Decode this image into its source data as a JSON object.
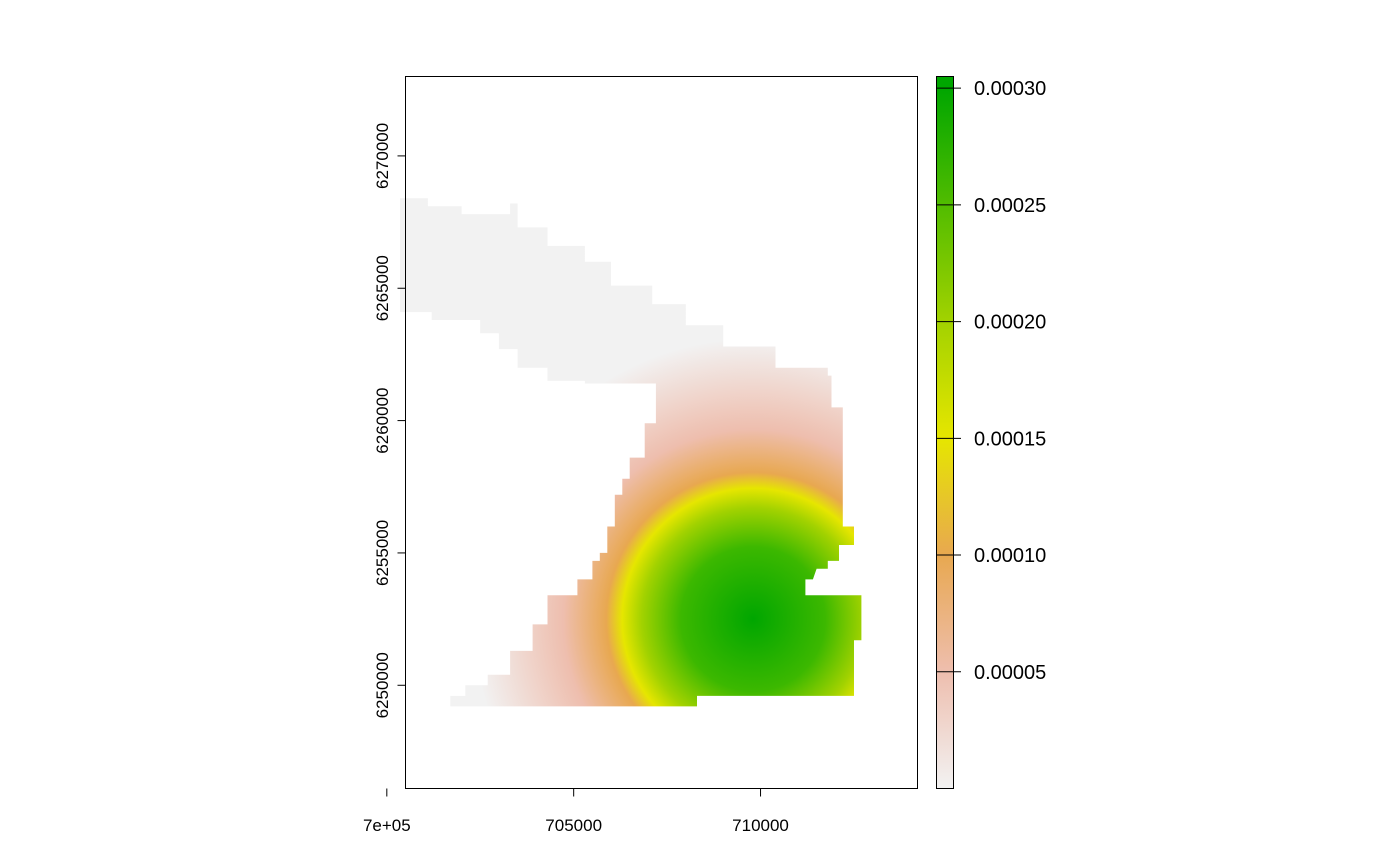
{
  "chart_data": {
    "type": "heatmap",
    "title": "",
    "xlabel": "",
    "ylabel": "",
    "xlim": [
      700500,
      714200
    ],
    "ylim": [
      6246100,
      6273000
    ],
    "x_ticks": [
      {
        "value": 700000,
        "label": "7e+05"
      },
      {
        "value": 705000,
        "label": "705000"
      },
      {
        "value": 710000,
        "label": "710000"
      }
    ],
    "y_ticks": [
      {
        "value": 6250000,
        "label": "6250000"
      },
      {
        "value": 6255000,
        "label": "6255000"
      },
      {
        "value": 6260000,
        "label": "6260000"
      },
      {
        "value": 6265000,
        "label": "6265000"
      },
      {
        "value": 6270000,
        "label": "6270000"
      }
    ],
    "colorbar": {
      "range": [
        0,
        0.000305
      ],
      "stops": [
        {
          "value": 0,
          "color": "#f2f2f2"
        },
        {
          "value": 5e-05,
          "color": "#eebeae"
        },
        {
          "value": 0.0001,
          "color": "#e8a850"
        },
        {
          "value": 0.00015,
          "color": "#e6e600"
        },
        {
          "value": 0.0002,
          "color": "#a2d200"
        },
        {
          "value": 0.0003,
          "color": "#00a600"
        }
      ],
      "ticks": [
        {
          "value": 5e-05,
          "label": "0.00005"
        },
        {
          "value": 0.0001,
          "label": "0.00010"
        },
        {
          "value": 0.00015,
          "label": "0.00015"
        },
        {
          "value": 0.0002,
          "label": "0.00020"
        },
        {
          "value": 0.00025,
          "label": "0.00025"
        },
        {
          "value": 0.0003,
          "label": "0.00030"
        }
      ]
    },
    "density_field": {
      "peak_value": 0.000305,
      "peak_center": [
        709800,
        6252500
      ],
      "yellow_ring_radius_m": 3500,
      "pink_fade_radius_m": 7500
    },
    "mask_outline": [
      [
        703300,
        6270200
      ],
      [
        703300,
        6268200
      ],
      [
        703500,
        6268200
      ],
      [
        703500,
        6267300
      ],
      [
        704300,
        6267300
      ],
      [
        704300,
        6266600
      ],
      [
        705300,
        6266600
      ],
      [
        705300,
        6266000
      ],
      [
        706000,
        6266000
      ],
      [
        706000,
        6265100
      ],
      [
        707100,
        6265100
      ],
      [
        707100,
        6264400
      ],
      [
        708000,
        6264400
      ],
      [
        708000,
        6263600
      ],
      [
        709000,
        6263600
      ],
      [
        709000,
        6262800
      ],
      [
        710400,
        6262800
      ],
      [
        710400,
        6262000
      ],
      [
        711800,
        6262000
      ],
      [
        711800,
        6261700
      ],
      [
        711900,
        6261700
      ],
      [
        711900,
        6260500
      ],
      [
        712200,
        6260500
      ],
      [
        712200,
        6256000
      ],
      [
        712500,
        6256000
      ],
      [
        712500,
        6255300
      ],
      [
        712100,
        6255300
      ],
      [
        712100,
        6254700
      ],
      [
        711800,
        6254700
      ],
      [
        711800,
        6254400
      ],
      [
        711500,
        6254400
      ],
      [
        711400,
        6254000
      ],
      [
        711200,
        6254000
      ],
      [
        711200,
        6253400
      ],
      [
        712700,
        6253400
      ],
      [
        712700,
        6251700
      ],
      [
        712500,
        6251700
      ],
      [
        712500,
        6249600
      ],
      [
        708300,
        6249600
      ],
      [
        708300,
        6249200
      ],
      [
        701700,
        6249200
      ],
      [
        701700,
        6249600
      ],
      [
        702100,
        6249600
      ],
      [
        702100,
        6250000
      ],
      [
        702700,
        6250000
      ],
      [
        702700,
        6250400
      ],
      [
        703300,
        6250400
      ],
      [
        703300,
        6251300
      ],
      [
        703900,
        6251300
      ],
      [
        703900,
        6252300
      ],
      [
        704300,
        6252300
      ],
      [
        704300,
        6253400
      ],
      [
        705100,
        6253400
      ],
      [
        705100,
        6254000
      ],
      [
        705500,
        6254000
      ],
      [
        705500,
        6254700
      ],
      [
        705700,
        6254700
      ],
      [
        705700,
        6255000
      ],
      [
        705900,
        6255000
      ],
      [
        705900,
        6256000
      ],
      [
        706100,
        6256000
      ],
      [
        706100,
        6257200
      ],
      [
        706300,
        6257200
      ],
      [
        706300,
        6257800
      ],
      [
        706500,
        6257800
      ],
      [
        706500,
        6258600
      ],
      [
        706900,
        6258600
      ],
      [
        706900,
        6259900
      ],
      [
        707200,
        6259900
      ],
      [
        707200,
        6261100
      ],
      [
        707200,
        6261400
      ],
      [
        705300,
        6261400
      ],
      [
        705300,
        6261500
      ],
      [
        704300,
        6261500
      ],
      [
        704300,
        6262000
      ],
      [
        703500,
        6262000
      ],
      [
        703500,
        6262700
      ],
      [
        703000,
        6262700
      ],
      [
        703000,
        6263300
      ],
      [
        702500,
        6263300
      ],
      [
        702500,
        6263800
      ],
      [
        701200,
        6263800
      ],
      [
        701200,
        6264100
      ],
      [
        699600,
        6264100
      ],
      [
        699600,
        6264600
      ],
      [
        699000,
        6264600
      ],
      [
        699000,
        6265000
      ],
      [
        698200,
        6265000
      ],
      [
        698200,
        6265600
      ],
      [
        697300,
        6265600
      ],
      [
        697300,
        6266100
      ],
      [
        697100,
        6266100
      ],
      [
        697100,
        6268300
      ],
      [
        697100,
        6270100
      ],
      [
        697800,
        6270100
      ],
      [
        697800,
        6269800
      ],
      [
        698600,
        6269800
      ],
      [
        698600,
        6269400
      ],
      [
        699400,
        6269400
      ],
      [
        699400,
        6268400
      ],
      [
        701100,
        6268400
      ],
      [
        701100,
        6268100
      ],
      [
        702000,
        6268100
      ],
      [
        702000,
        6267800
      ],
      [
        703300,
        6267800
      ]
    ]
  }
}
